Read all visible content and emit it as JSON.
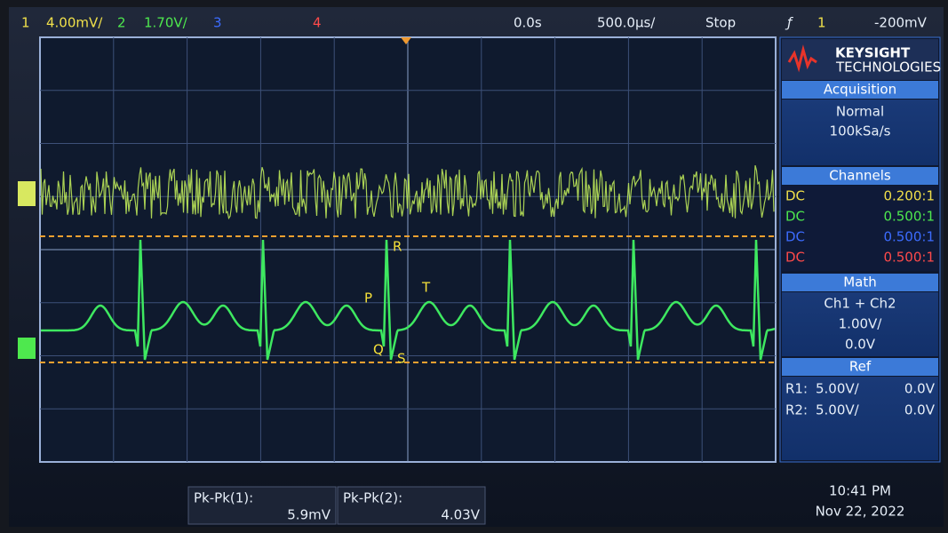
{
  "top_bar": {
    "ch1_label": "1",
    "ch1_scale": "4.00mV/",
    "ch2_label": "2",
    "ch2_scale": "1.70V/",
    "ch3_label": "3",
    "ch4_label": "4",
    "time_offset": "0.0s",
    "time_scale": "500.0µs/",
    "run_state": "Stop",
    "trigger_source": "1",
    "trigger_level": "-200mV"
  },
  "brand": {
    "name": "KEYSIGHT",
    "subtitle": "TECHNOLOGIES"
  },
  "acquisition": {
    "title": "Acquisition",
    "mode": "Normal",
    "rate": "100kSa/s"
  },
  "channels": {
    "title": "Channels",
    "rows": [
      [
        "DC",
        "0.200:1"
      ],
      [
        "DC",
        "0.500:1"
      ],
      [
        "DC",
        "0.500:1"
      ],
      [
        "DC",
        "0.500:1"
      ]
    ]
  },
  "math": {
    "title": "Math",
    "function": "Ch1 + Ch2",
    "scale": "1.00V/",
    "offset": "0.0V"
  },
  "ref": {
    "title": "Ref",
    "rows": [
      [
        "R1:",
        "5.00V/",
        "0.0V"
      ],
      [
        "R2:",
        "5.00V/",
        "0.0V"
      ]
    ]
  },
  "measurements": [
    {
      "label": "Pk-Pk(1):",
      "value": "5.9mV"
    },
    {
      "label": "Pk-Pk(2):",
      "value": "4.03V"
    }
  ],
  "clock": {
    "time": "10:41 PM",
    "date": "Nov 22, 2022"
  },
  "annotations": {
    "r": "R",
    "p": "P",
    "t": "T",
    "q": "Q",
    "s": "S"
  }
}
